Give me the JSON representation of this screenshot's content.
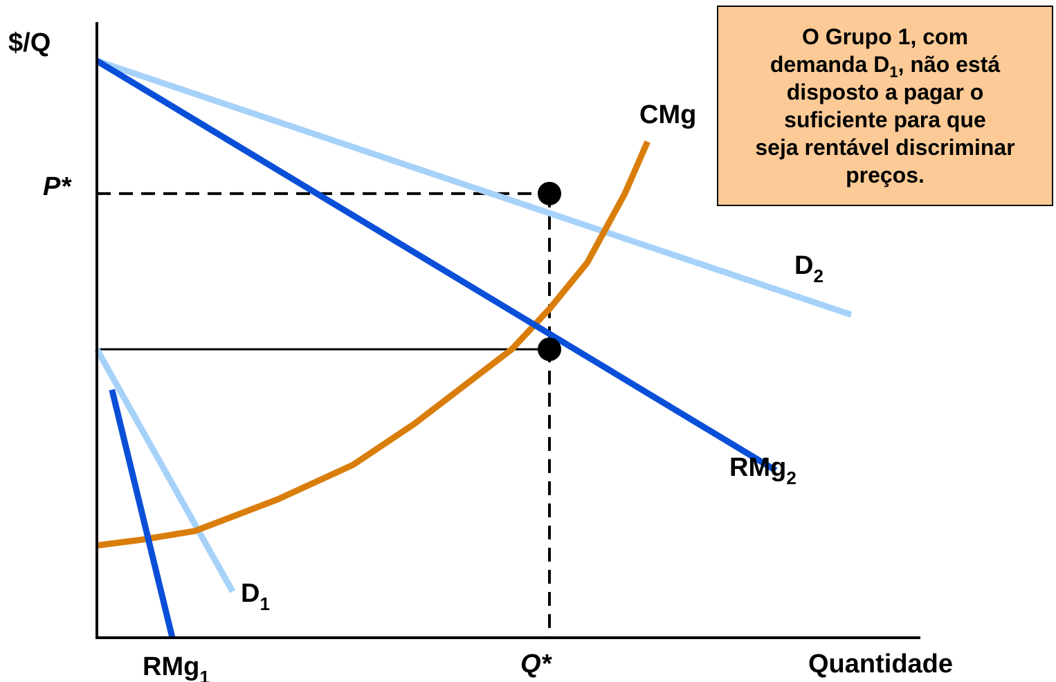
{
  "chart_data": {
    "type": "line",
    "y_axis_label": "$/Q",
    "x_axis_label": "Quantidade",
    "price_marker": "P*",
    "quantity_marker": "Q*",
    "series": [
      {
        "label": "D",
        "sub": "2",
        "color": "#a6d2fa",
        "points": [
          [
            0,
            100
          ],
          [
            100,
            56
          ]
        ]
      },
      {
        "label": "RMg",
        "sub": "2",
        "color": "#0a4fd8",
        "points": [
          [
            0,
            100
          ],
          [
            90,
            29
          ]
        ]
      },
      {
        "label": "D",
        "sub": "1",
        "color": "#a6d2fa",
        "points": [
          [
            0,
            50
          ],
          [
            18,
            8
          ]
        ]
      },
      {
        "label": "RMg",
        "sub": "1",
        "color": "#0a4fd8",
        "points": [
          [
            2,
            43
          ],
          [
            10,
            0
          ]
        ]
      },
      {
        "label": "CMg",
        "sub": "",
        "color": "#d97d0b",
        "points": [
          [
            0,
            16
          ],
          [
            6,
            17
          ],
          [
            13,
            18.5
          ],
          [
            24,
            24
          ],
          [
            34,
            30
          ],
          [
            42,
            37
          ],
          [
            50,
            45
          ],
          [
            55,
            50
          ],
          [
            60,
            57
          ],
          [
            65,
            65
          ],
          [
            70,
            77
          ],
          [
            73,
            86
          ]
        ]
      }
    ],
    "equilibrium": [
      {
        "x": 60,
        "y": 77
      },
      {
        "x": 60,
        "y": 50
      }
    ]
  },
  "annotation": {
    "lines": [
      {
        "pre": "O Grupo 1, com",
        "sub": "",
        "post": ""
      },
      {
        "pre": "demanda D",
        "sub": "1",
        "post": ", não está"
      },
      {
        "pre": "disposto a pagar o",
        "sub": "",
        "post": ""
      },
      {
        "pre": "suficiente para que",
        "sub": "",
        "post": ""
      },
      {
        "pre": "seja rentável discriminar",
        "sub": "",
        "post": ""
      },
      {
        "pre": "preços.",
        "sub": "",
        "post": ""
      }
    ]
  }
}
